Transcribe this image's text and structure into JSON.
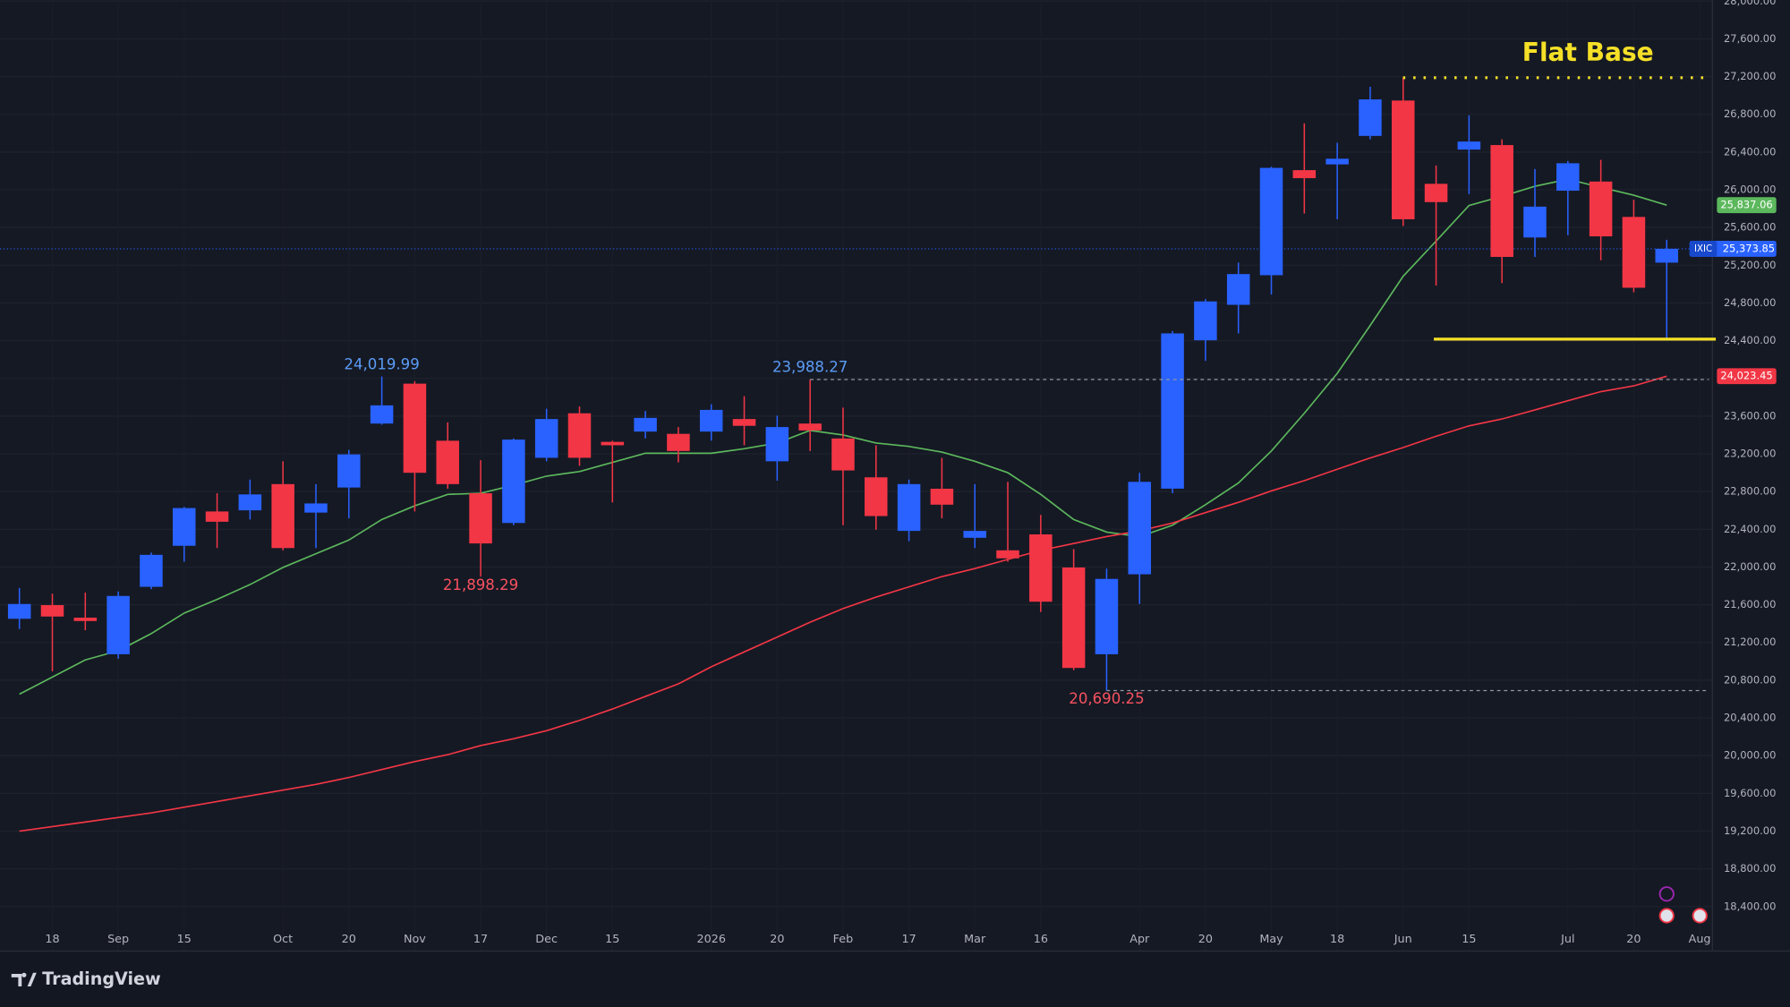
{
  "chart_data": {
    "type": "candlestick",
    "categories": [
      null,
      "18",
      null,
      "Sep",
      null,
      "15",
      null,
      null,
      "Oct",
      null,
      "20",
      null,
      "Nov",
      null,
      "17",
      null,
      "Dec",
      null,
      "15",
      null,
      null,
      "2026",
      null,
      "20",
      null,
      "Feb",
      null,
      "17",
      null,
      "Mar",
      null,
      "16",
      null,
      null,
      "Apr",
      null,
      "20",
      null,
      "May",
      null,
      "18",
      null,
      "Jun",
      null,
      "15",
      null,
      null,
      "Jul",
      null,
      "20",
      null,
      "Aug"
    ],
    "series": [
      {
        "name": "IXIC",
        "up_color": "#2962ff",
        "down_color": "#f23645",
        "open": [
          21451,
          21596,
          21463,
          21075,
          21790,
          22225,
          22589,
          22601,
          22879,
          22577,
          22843,
          23521,
          23944,
          23339,
          22782,
          22467,
          23158,
          23630,
          23327,
          23436,
          23412,
          23436,
          23569,
          23121,
          23521,
          23363,
          22951,
          22383,
          22830,
          22310,
          22177,
          22346,
          21995,
          21075,
          21923,
          22831,
          24404,
          24780,
          25094,
          26208,
          26269,
          26571,
          26946,
          26063,
          26426,
          26474,
          25494,
          25990,
          26087,
          25712,
          25227,
          null
        ],
        "high": [
          21778,
          21717,
          21729,
          21741,
          22153,
          22637,
          22782,
          22927,
          23121,
          22879,
          23242,
          24019.99,
          23970,
          23533,
          23133,
          23363,
          23678,
          23702,
          23339,
          23654,
          23484,
          23726,
          23811,
          23605,
          23988.27,
          23690,
          23291,
          22927,
          23157,
          22879,
          22903,
          22552,
          22189,
          21983,
          22999,
          24501,
          24840,
          25227,
          26244,
          26704,
          26498,
          27092,
          27188,
          26257,
          26789,
          26535,
          26220,
          26305,
          26317,
          25893,
          25470,
          null
        ],
        "low": [
          21342,
          20894,
          21330,
          21027,
          21765,
          22056,
          22201,
          22504,
          22177,
          22201,
          22516,
          23509,
          22589,
          22830,
          21898.29,
          22443,
          23121,
          23073,
          22685,
          23363,
          23109,
          23339,
          23291,
          22915,
          23230,
          22443,
          22395,
          22274,
          22516,
          22201,
          22056,
          21523,
          20906,
          20690.25,
          21608,
          22782,
          24186,
          24477,
          24888,
          25748,
          25687,
          26535,
          25615,
          24985,
          25954,
          25010,
          25288,
          25518,
          25252,
          24913,
          24429,
          null
        ],
        "close": [
          21608,
          21475,
          21427,
          21693,
          22129,
          22625,
          22480,
          22770,
          22201,
          22674,
          23194,
          23714,
          22999,
          22879,
          22250,
          23351,
          23569,
          23158,
          23291,
          23581,
          23230,
          23666,
          23497,
          23484,
          23448,
          23024,
          22540,
          22879,
          22661,
          22383,
          22092,
          21632,
          20930,
          21874,
          22903,
          24477,
          24816,
          25106,
          26232,
          26123,
          26329,
          26958,
          25687,
          25869,
          26511,
          25288,
          25821,
          26281,
          25506,
          24961,
          25373.85,
          null
        ],
        "high_labels": [
          null,
          null,
          null,
          null,
          null,
          null,
          null,
          null,
          null,
          null,
          null,
          "24,019.99",
          null,
          null,
          null,
          null,
          null,
          null,
          null,
          null,
          null,
          null,
          null,
          null,
          "23,988.27",
          null,
          null,
          null,
          null,
          null,
          null,
          null,
          null,
          null,
          null,
          null,
          null,
          null,
          null,
          null,
          null,
          null,
          null,
          null,
          null,
          null,
          null,
          null,
          null,
          null,
          null,
          null
        ],
        "low_labels": [
          null,
          null,
          null,
          null,
          null,
          null,
          null,
          null,
          null,
          null,
          null,
          null,
          null,
          null,
          "21,898.29",
          null,
          null,
          null,
          null,
          null,
          null,
          null,
          null,
          null,
          null,
          null,
          null,
          null,
          null,
          null,
          null,
          null,
          null,
          "20,690.25",
          null,
          null,
          null,
          null,
          null,
          null,
          null,
          null,
          null,
          null,
          null,
          null,
          null,
          null,
          null,
          null,
          null,
          null
        ],
        "last_label": "25,373.85"
      }
    ],
    "lines": [
      {
        "color": "#5cb85c",
        "values": [
          20652,
          20833,
          21015,
          21112,
          21293,
          21511,
          21656,
          21814,
          21995,
          22141,
          22286,
          22504,
          22649,
          22770,
          22782,
          22867,
          22964,
          23012,
          23109,
          23206,
          23206,
          23206,
          23254,
          23315,
          23448,
          23400,
          23315,
          23279,
          23218,
          23121,
          23000,
          22770,
          22504,
          22371,
          22322,
          22443,
          22661,
          22891,
          23230,
          23630,
          24053,
          24562,
          25082,
          25457,
          25833,
          25930,
          26038,
          26111,
          26026,
          25942,
          25837.06,
          null
        ],
        "last_label": "25,837.06"
      },
      {
        "color": "#f23645",
        "values": [
          19199,
          19248,
          19296,
          19344,
          19393,
          19453,
          19514,
          19574,
          19635,
          19695,
          19768,
          19853,
          19938,
          20010,
          20107,
          20180,
          20264,
          20373,
          20494,
          20628,
          20761,
          20942,
          21100,
          21257,
          21414,
          21560,
          21681,
          21790,
          21899,
          21983,
          22080,
          22177,
          22250,
          22322,
          22383,
          22467,
          22576,
          22685,
          22806,
          22915,
          23036,
          23157,
          23266,
          23387,
          23496,
          23569,
          23666,
          23763,
          23860,
          23920,
          24023.45,
          null
        ],
        "last_label": "24,023.45"
      }
    ],
    "ylim": [
      17928,
      28012
    ],
    "yticks": [
      {
        "value": 18400,
        "label": "18,400.00"
      },
      {
        "value": 18800,
        "label": "18,800.00"
      },
      {
        "value": 19200,
        "label": "19,200.00"
      },
      {
        "value": 19600,
        "label": "19,600.00"
      },
      {
        "value": 20000,
        "label": "20,000.00"
      },
      {
        "value": 20400,
        "label": "20,400.00"
      },
      {
        "value": 20800,
        "label": "20,800.00"
      },
      {
        "value": 21200,
        "label": "21,200.00"
      },
      {
        "value": 21600,
        "label": "21,600.00"
      },
      {
        "value": 22000,
        "label": "22,000.00"
      },
      {
        "value": 22400,
        "label": "22,400.00"
      },
      {
        "value": 22800,
        "label": "22,800.00"
      },
      {
        "value": 23200,
        "label": "23,200.00"
      },
      {
        "value": 23600,
        "label": "23,600.00"
      },
      {
        "value": 24000,
        "label": "24,000.00"
      },
      {
        "value": 24400,
        "label": "24,400.00"
      },
      {
        "value": 24800,
        "label": "24,800.00"
      },
      {
        "value": 25200,
        "label": "25,200.00"
      },
      {
        "value": 25600,
        "label": "25,600.00"
      },
      {
        "value": 26000,
        "label": "26,000.00"
      },
      {
        "value": 26400,
        "label": "26,400.00"
      },
      {
        "value": 26800,
        "label": "26,800.00"
      },
      {
        "value": 27200,
        "label": "27,200.00"
      },
      {
        "value": 27600,
        "label": "27,600.00"
      },
      {
        "value": 28000,
        "label": "28,000.00"
      }
    ],
    "grid": true,
    "flat_base": {
      "label": "Flat Base",
      "color": "#f5e027",
      "high": 27188,
      "low": 24416
    }
  },
  "brand": "TradingView"
}
